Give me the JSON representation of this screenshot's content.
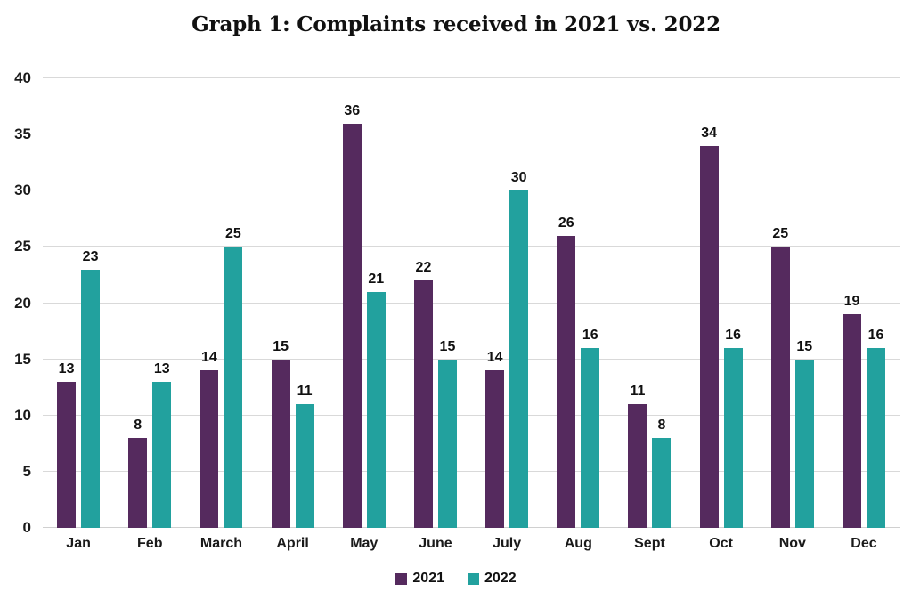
{
  "title": "Graph 1: Complaints received in 2021 vs. 2022",
  "chart_data": {
    "type": "bar",
    "categories": [
      "Jan",
      "Feb",
      "March",
      "April",
      "May",
      "June",
      "July",
      "Aug",
      "Sept",
      "Oct",
      "Nov",
      "Dec"
    ],
    "series": [
      {
        "name": "2021",
        "color": "#552A5E",
        "values": [
          13,
          8,
          14,
          15,
          36,
          22,
          14,
          26,
          11,
          34,
          25,
          19
        ]
      },
      {
        "name": "2022",
        "color": "#22A19E",
        "values": [
          23,
          13,
          25,
          11,
          21,
          15,
          30,
          16,
          8,
          16,
          15,
          16
        ]
      }
    ],
    "title": "Graph 1: Complaints received in 2021 vs. 2022",
    "xlabel": "",
    "ylabel": "",
    "ylim": [
      0,
      40
    ],
    "ytick_step": 5,
    "yticks": [
      0,
      5,
      10,
      15,
      20,
      25,
      30,
      35,
      40
    ],
    "grid": true,
    "data_labels": true,
    "legend_position": "bottom",
    "gridline_color": "#d9d9d9",
    "text_color": "#111111"
  }
}
